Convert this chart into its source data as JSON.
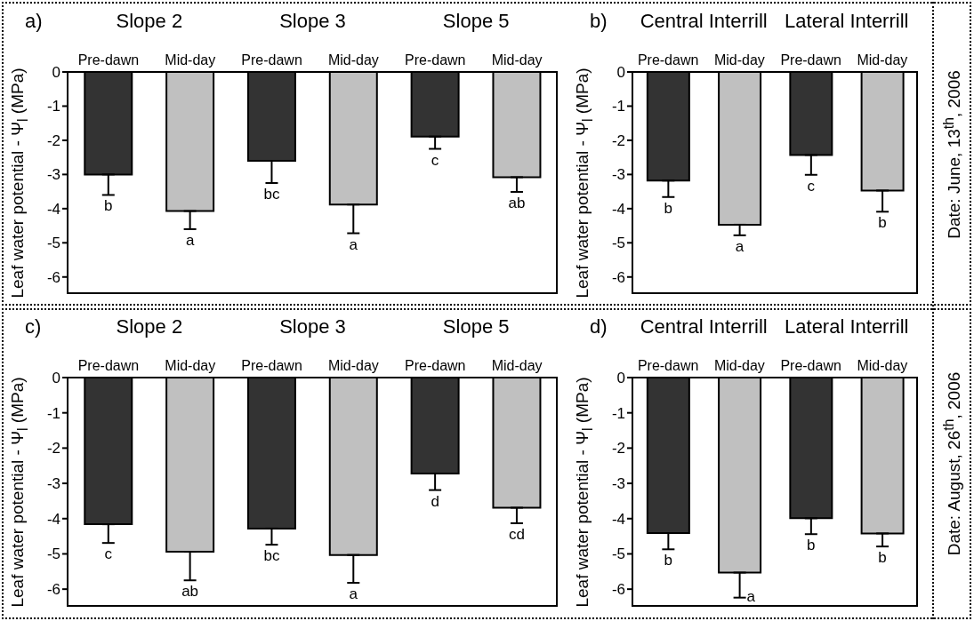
{
  "chart_data": [
    {
      "type": "bar",
      "title": "a)",
      "ylabel": "Leaf water potential - Ψ$_{l}$ (MPa)",
      "annotations": [
        "Slope 2",
        "Slope 3",
        "Slope 5"
      ],
      "categories": [
        "Pre-dawn",
        "Mid-day",
        "Pre-dawn",
        "Mid-day",
        "Pre-dawn",
        "Mid-day"
      ],
      "values": [
        -3.0,
        -4.07,
        -2.6,
        -3.88,
        -1.89,
        -3.08
      ],
      "colors": [
        "#333333",
        "#c0c0c0",
        "#333333",
        "#c0c0c0",
        "#333333",
        "#c0c0c0"
      ],
      "errors": [
        [
          -3.6,
          -3.0
        ],
        [
          -4.6,
          -4.07
        ],
        [
          -3.25,
          -2.6
        ],
        [
          -4.72,
          -3.88
        ],
        [
          -2.25,
          -1.89
        ],
        [
          -3.51,
          -3.08
        ]
      ],
      "value_labels": [
        "b",
        "a",
        "bc",
        "a",
        "c",
        "ab"
      ],
      "ylim": [
        -6.5,
        0
      ],
      "yticks": [
        -6,
        -5,
        -4,
        -3,
        -2,
        -1,
        0
      ]
    },
    {
      "type": "bar",
      "title": "b)",
      "ylabel": "Leaf water potential - Ψ$_{l}$ (MPa)",
      "annotations": [
        "Central Interrill",
        "Lateral Interrill"
      ],
      "categories": [
        "Pre-dawn",
        "Mid-day",
        "Pre-dawn",
        "Mid-day"
      ],
      "values": [
        -3.18,
        -4.47,
        -2.43,
        -3.47
      ],
      "colors": [
        "#333333",
        "#c0c0c0",
        "#333333",
        "#c0c0c0"
      ],
      "errors": [
        [
          -3.66,
          -3.18
        ],
        [
          -4.78,
          -4.47
        ],
        [
          -3.01,
          -2.43
        ],
        [
          -4.09,
          -3.47
        ]
      ],
      "value_labels": [
        "b",
        "a",
        "c",
        "b"
      ],
      "ylim": [
        -6.5,
        0
      ],
      "yticks": [
        -6,
        -5,
        -4,
        -3,
        -2,
        -1,
        0
      ]
    },
    {
      "type": "other",
      "title": "Date: June, 13$^{th}$, 2006"
    },
    {
      "type": "bar",
      "title": "c)",
      "ylabel": "Leaf water potential - Ψ$_{l}$ (MPa)",
      "annotations": [
        "Slope 2",
        "Slope 3",
        "Slope 5"
      ],
      "categories": [
        "Pre-dawn",
        "Mid-day",
        "Pre-dawn",
        "Mid-day",
        "Pre-dawn",
        "Mid-day"
      ],
      "values": [
        -4.16,
        -4.94,
        -4.28,
        -5.03,
        -2.72,
        -3.69
      ],
      "colors": [
        "#333333",
        "#c0c0c0",
        "#333333",
        "#c0c0c0",
        "#333333",
        "#c0c0c0"
      ],
      "errors": [
        [
          -4.69,
          -4.16
        ],
        [
          -5.75,
          -4.94
        ],
        [
          -4.74,
          -4.28
        ],
        [
          -5.82,
          -5.03
        ],
        [
          -3.19,
          -2.72
        ],
        [
          -4.13,
          -3.69
        ]
      ],
      "value_labels": [
        "c",
        "ab",
        "bc",
        "a",
        "d",
        "cd"
      ],
      "ylim": [
        -6.5,
        0
      ],
      "yticks": [
        -6,
        -5,
        -4,
        -3,
        -2,
        -1,
        0
      ]
    },
    {
      "type": "bar",
      "title": "d)",
      "ylabel": "Leaf water potential - Ψ$_{l}$ (MPa)",
      "annotations": [
        "Central Interrill",
        "Lateral Interrill"
      ],
      "categories": [
        "Pre-dawn",
        "Mid-day",
        "Pre-dawn",
        "Mid-day"
      ],
      "values": [
        -4.41,
        -5.53,
        -3.99,
        -4.42
      ],
      "colors": [
        "#333333",
        "#c0c0c0",
        "#333333",
        "#c0c0c0"
      ],
      "errors": [
        [
          -4.87,
          -4.41
        ],
        [
          -6.24,
          -5.53
        ],
        [
          -4.44,
          -3.99
        ],
        [
          -4.79,
          -4.42
        ]
      ],
      "value_labels": [
        "b",
        "a",
        "b",
        "b"
      ],
      "ylim": [
        -6.5,
        0
      ],
      "yticks": [
        -6,
        -5,
        -4,
        -3,
        -2,
        -1,
        0
      ]
    },
    {
      "type": "other",
      "title": "Date: August, 26$^{th}$, 2006"
    }
  ]
}
